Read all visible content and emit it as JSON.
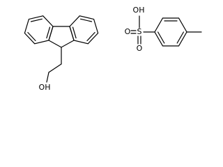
{
  "molecules": [
    {
      "atoms": [
        "OH"
      ]
    },
    {
      "atoms": [
        "OH",
        "S",
        "O",
        "O"
      ]
    }
  ]
}
